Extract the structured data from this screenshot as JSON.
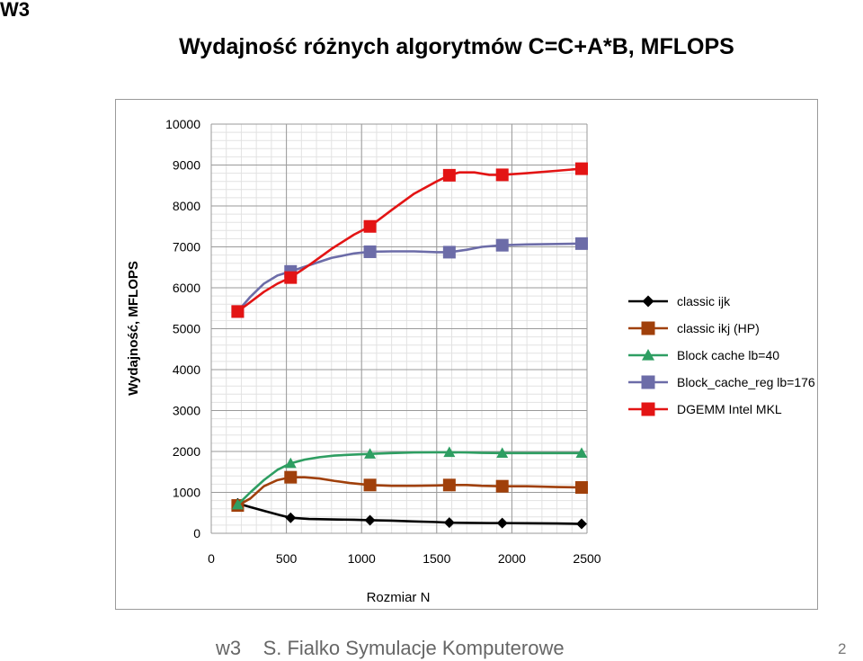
{
  "slide": {
    "label": "W3",
    "footer_left": "w3    S. Fialko Symulacje Komputerowe",
    "page_number": "2"
  },
  "chart_data": {
    "type": "line",
    "title": "Wydajność różnych algorytmów C=C+A*B, MFLOPS",
    "xlabel": "Rozmiar N",
    "ylabel": "Wydajność, MFLOPS",
    "xlim": [
      0,
      2500
    ],
    "ylim": [
      0,
      10000
    ],
    "x_ticks": [
      0,
      500,
      1000,
      1500,
      2000,
      2500
    ],
    "y_ticks": [
      0,
      1000,
      2000,
      3000,
      4000,
      5000,
      6000,
      7000,
      8000,
      9000,
      10000
    ],
    "grid": true,
    "legend_position": "right",
    "series": [
      {
        "name": "classic ijk",
        "color": "#000000",
        "marker": "diamond",
        "x": [
          176,
          528,
          1056,
          1584,
          1936,
          2464
        ],
        "y": [
          730,
          380,
          320,
          260,
          250,
          230
        ],
        "line_x": [
          176,
          250,
          350,
          450,
          528,
          650,
          800,
          950,
          1056,
          1200,
          1350,
          1500,
          1584,
          1700,
          1850,
          1936,
          2100,
          2300,
          2464
        ],
        "line_y": [
          730,
          650,
          550,
          450,
          380,
          350,
          340,
          330,
          320,
          310,
          290,
          275,
          260,
          255,
          250,
          250,
          245,
          240,
          230
        ]
      },
      {
        "name": "classic ikj (HP)",
        "color": "#a0400b",
        "marker": "square",
        "x": [
          176,
          528,
          1056,
          1584,
          1936,
          2464
        ],
        "y": [
          680,
          1370,
          1180,
          1180,
          1150,
          1120
        ],
        "line_x": [
          176,
          260,
          350,
          440,
          528,
          620,
          720,
          820,
          920,
          1056,
          1200,
          1350,
          1500,
          1584,
          1700,
          1800,
          1936,
          2100,
          2300,
          2464
        ],
        "line_y": [
          680,
          850,
          1150,
          1300,
          1370,
          1370,
          1340,
          1280,
          1230,
          1180,
          1160,
          1160,
          1170,
          1180,
          1180,
          1160,
          1150,
          1150,
          1130,
          1120
        ]
      },
      {
        "name": "Block cache lb=40",
        "color": "#2e9e62",
        "marker": "triangle",
        "x": [
          176,
          528,
          1056,
          1584,
          1936,
          2464
        ],
        "y": [
          700,
          1710,
          1940,
          1980,
          1960,
          1960
        ],
        "line_x": [
          176,
          260,
          350,
          440,
          528,
          620,
          720,
          820,
          920,
          1056,
          1200,
          1350,
          1500,
          1584,
          1700,
          1800,
          1936,
          2100,
          2300,
          2464
        ],
        "line_y": [
          700,
          1000,
          1300,
          1550,
          1710,
          1800,
          1860,
          1900,
          1920,
          1940,
          1960,
          1975,
          1980,
          1980,
          1975,
          1965,
          1960,
          1960,
          1960,
          1960
        ]
      },
      {
        "name": "Block_cache_reg lb=176",
        "color": "#6c6ca8",
        "marker": "square",
        "x": [
          176,
          528,
          1056,
          1584,
          1936,
          2464
        ],
        "y": [
          5420,
          6400,
          6880,
          6870,
          7040,
          7080
        ],
        "line_x": [
          176,
          260,
          350,
          440,
          528,
          650,
          800,
          950,
          1056,
          1200,
          1350,
          1500,
          1584,
          1700,
          1800,
          1936,
          2100,
          2300,
          2464
        ],
        "line_y": [
          5420,
          5780,
          6100,
          6300,
          6400,
          6550,
          6730,
          6840,
          6880,
          6890,
          6890,
          6870,
          6870,
          6930,
          7000,
          7040,
          7060,
          7070,
          7080
        ]
      },
      {
        "name": "DGEMM Intel MKL",
        "color": "#e31414",
        "marker": "square",
        "x": [
          176,
          528,
          1056,
          1584,
          1936,
          2464
        ],
        "y": [
          5420,
          6250,
          7500,
          8750,
          8760,
          8910
        ],
        "line_x": [
          176,
          260,
          350,
          440,
          528,
          650,
          800,
          950,
          1056,
          1200,
          1350,
          1500,
          1584,
          1650,
          1750,
          1850,
          1936,
          2100,
          2300,
          2464
        ],
        "line_y": [
          5420,
          5650,
          5900,
          6100,
          6250,
          6550,
          6950,
          7300,
          7500,
          7900,
          8300,
          8600,
          8750,
          8820,
          8820,
          8760,
          8760,
          8800,
          8860,
          8910
        ]
      }
    ]
  }
}
